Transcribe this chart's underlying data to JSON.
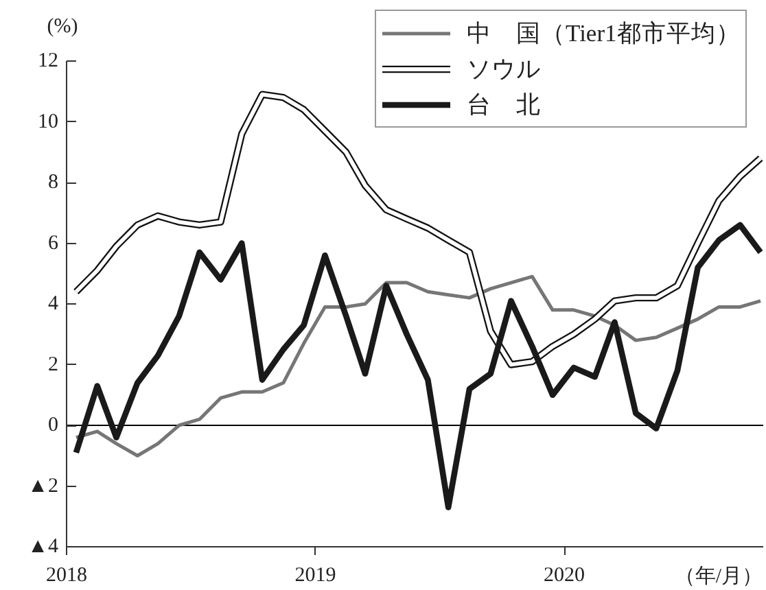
{
  "chart_data": {
    "type": "line",
    "ylabel": "(%)",
    "xlabel": "（年/月）",
    "x": [
      "2018-01-15",
      "2018-02-15",
      "2018-03-15",
      "2018-04-15",
      "2018-05-15",
      "2018-06-15",
      "2018-07-15",
      "2018-08-15",
      "2018-09-15",
      "2018-10-15",
      "2018-11-15",
      "2018-12-15",
      "2019-01-15",
      "2019-02-15",
      "2019-03-15",
      "2019-04-15",
      "2019-05-15",
      "2019-06-15",
      "2019-07-15",
      "2019-08-15",
      "2019-09-15",
      "2019-10-15",
      "2019-11-15",
      "2019-12-15",
      "2020-01-15",
      "2020-02-15",
      "2020-03-15",
      "2020-04-15",
      "2020-05-15",
      "2020-06-15",
      "2020-07-15",
      "2020-08-15",
      "2020-09-15",
      "2020-10-15"
    ],
    "xlim": [
      "2018-01-01",
      "2020-10-20"
    ],
    "xticks": [
      "2018",
      "2019",
      "2020"
    ],
    "ylim": [
      -4,
      12
    ],
    "yticks": [
      {
        "value": -4,
        "label": "▲4"
      },
      {
        "value": -2,
        "label": "▲2"
      },
      0,
      2,
      4,
      6,
      8,
      10,
      12
    ],
    "series": [
      {
        "name": "中　国（Tier1都市平均）",
        "color": "#767676",
        "values": [
          -0.4,
          -0.2,
          -0.6,
          -1.0,
          -0.6,
          0.0,
          0.2,
          0.9,
          1.1,
          1.1,
          1.4,
          2.7,
          3.9,
          3.9,
          4.0,
          4.7,
          4.7,
          4.4,
          4.3,
          4.2,
          4.5,
          4.7,
          4.9,
          3.8,
          3.8,
          3.6,
          3.3,
          2.8,
          2.9,
          3.2,
          3.5,
          3.9,
          3.9,
          4.1
        ]
      },
      {
        "name": "ソウル",
        "color": "#111111",
        "values": [
          4.4,
          5.1,
          5.9,
          6.6,
          6.9,
          6.7,
          6.6,
          6.7,
          9.6,
          10.9,
          10.8,
          10.4,
          9.7,
          9.0,
          7.9,
          7.1,
          6.8,
          6.5,
          6.1,
          5.7,
          3.1,
          2.0,
          2.1,
          2.6,
          3.0,
          3.5,
          4.1,
          4.2,
          4.2,
          4.6,
          6.0,
          7.4,
          8.2,
          8.8
        ]
      },
      {
        "name": "台　北",
        "color": "#1a1a1a",
        "values": [
          -0.9,
          1.3,
          -0.4,
          1.4,
          2.3,
          3.6,
          5.7,
          4.8,
          6.0,
          1.5,
          2.5,
          3.3,
          5.6,
          3.6,
          1.7,
          4.6,
          3.0,
          1.5,
          -2.7,
          1.2,
          1.7,
          4.1,
          2.6,
          1.0,
          1.9,
          1.6,
          3.4,
          0.4,
          -0.1,
          1.8,
          5.2,
          6.1,
          6.6,
          5.7
        ]
      }
    ],
    "ref_lines": [
      {
        "axis": "y",
        "value": 0,
        "color": "#000000"
      }
    ],
    "legend": "top right"
  }
}
